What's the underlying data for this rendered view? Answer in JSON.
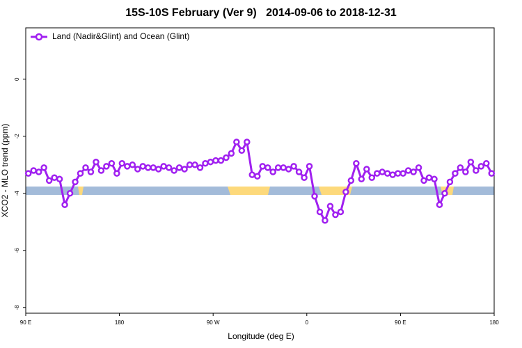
{
  "chart_data": {
    "type": "line",
    "title": "15S-10S February (Ver 9)   2014-09-06 to 2018-12-31",
    "xlabel": "Longitude (deg E)",
    "ylabel": "XCO2 - MLO trend (ppm)",
    "x": [
      92.5,
      97.5,
      102.5,
      107.5,
      112.5,
      117.5,
      122.5,
      127.5,
      132.5,
      137.5,
      142.5,
      147.5,
      152.5,
      157.5,
      162.5,
      167.5,
      172.5,
      177.5,
      182.5,
      187.5,
      192.5,
      197.5,
      202.5,
      207.5,
      212.5,
      217.5,
      222.5,
      227.5,
      232.5,
      237.5,
      242.5,
      247.5,
      252.5,
      257.5,
      262.5,
      267.5,
      272.5,
      277.5,
      282.5,
      287.5,
      292.5,
      297.5,
      302.5,
      307.5,
      312.5,
      317.5,
      322.5,
      327.5,
      332.5,
      337.5,
      342.5,
      347.5,
      352.5,
      357.5,
      362.5,
      367.5,
      372.5,
      377.5,
      382.5,
      387.5,
      392.5,
      397.5,
      402.5,
      407.5,
      412.5,
      417.5,
      422.5,
      427.5,
      432.5,
      437.5,
      442.5,
      447.5,
      452.5,
      457.5,
      462.5,
      467.5,
      472.5,
      477.5,
      482.5,
      487.5,
      492.5,
      497.5,
      502.5,
      507.5,
      512.5,
      517.5,
      522.5,
      527.5,
      532.5,
      537.5
    ],
    "series": [
      {
        "name": "Land (Nadir&Glint) and Ocean (Glint)",
        "color": "#a020f0",
        "values": [
          -3.3,
          -3.2,
          -3.25,
          -3.1,
          -3.55,
          -3.45,
          -3.5,
          -4.4,
          -4.0,
          -3.6,
          -3.3,
          -3.1,
          -3.25,
          -2.9,
          -3.2,
          -3.05,
          -2.95,
          -3.3,
          -2.95,
          -3.05,
          -3.0,
          -3.15,
          -3.05,
          -3.1,
          -3.1,
          -3.15,
          -3.05,
          -3.1,
          -3.2,
          -3.1,
          -3.15,
          -3.0,
          -3.0,
          -3.1,
          -2.95,
          -2.9,
          -2.85,
          -2.85,
          -2.75,
          -2.6,
          -2.2,
          -2.5,
          -2.2,
          -3.35,
          -3.4,
          -3.05,
          -3.1,
          -3.25,
          -3.1,
          -3.1,
          -3.15,
          -3.05,
          -3.25,
          -3.45,
          -3.05,
          -4.1,
          -4.65,
          -4.95,
          -4.45,
          -4.75,
          -4.65,
          -3.95,
          -3.55,
          -2.95,
          -3.5,
          -3.15,
          -3.45,
          -3.3,
          -3.25,
          -3.3,
          -3.35,
          -3.3,
          -3.3,
          -3.2,
          -3.25,
          -3.1,
          -3.55,
          -3.45,
          -3.5,
          -4.4,
          -4.0,
          -3.6,
          -3.3,
          -3.1,
          -3.25,
          -2.9,
          -3.2,
          -3.05,
          -2.95,
          -3.3
        ]
      }
    ],
    "xlim": [
      90,
      540
    ],
    "xticks": [
      {
        "value": 90,
        "label": "90 E"
      },
      {
        "value": 180,
        "label": "180"
      },
      {
        "value": 270,
        "label": "90 W"
      },
      {
        "value": 360,
        "label": "0"
      },
      {
        "value": 450,
        "label": "90 E"
      },
      {
        "value": 540,
        "label": "180"
      }
    ],
    "ylim": [
      -8.2,
      1.8
    ],
    "yticks": [
      0,
      -2,
      -4,
      -6,
      -8
    ],
    "legend": "upper left",
    "grid": false
  }
}
